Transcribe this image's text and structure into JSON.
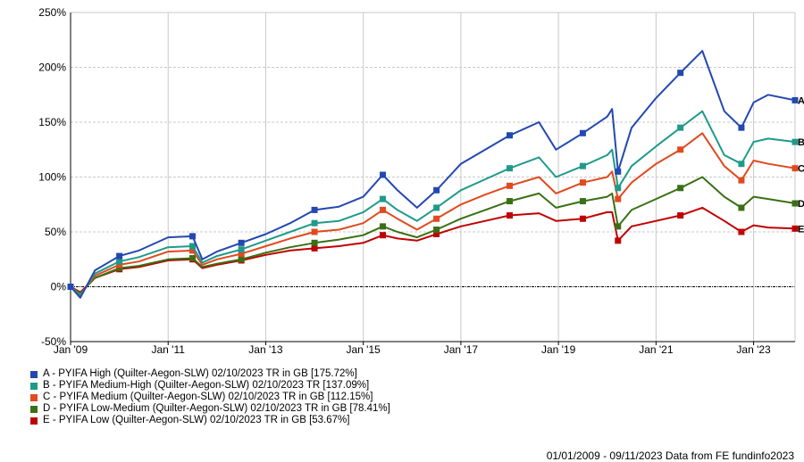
{
  "chart_data": {
    "type": "line",
    "title": "",
    "xlabel": "",
    "ylabel": "",
    "ylim": [
      -50,
      250
    ],
    "yticks": [
      "250%",
      "200%",
      "150%",
      "100%",
      "50%",
      "0%",
      "-50%"
    ],
    "ytick_values": [
      250,
      200,
      150,
      100,
      50,
      0,
      -50
    ],
    "xticks": [
      "Jan '09",
      "Jan '11",
      "Jan '13",
      "Jan '15",
      "Jan '17",
      "Jan '19",
      "Jan '21",
      "Jan '23"
    ],
    "xtick_values": [
      2009,
      2011,
      2013,
      2015,
      2017,
      2019,
      2021,
      2023
    ],
    "xlim": [
      2009.0,
      2023.85
    ],
    "grid": true,
    "legend_position": "bottom-left",
    "x": [
      2009.0,
      2009.2,
      2009.5,
      2010.0,
      2010.4,
      2011.0,
      2011.5,
      2011.7,
      2012.0,
      2012.5,
      2013.0,
      2013.5,
      2014.0,
      2014.5,
      2015.0,
      2015.4,
      2015.7,
      2016.1,
      2016.5,
      2017.0,
      2017.5,
      2018.0,
      2018.6,
      2018.95,
      2019.5,
      2020.0,
      2020.1,
      2020.22,
      2020.5,
      2021.0,
      2021.5,
      2021.95,
      2022.4,
      2022.75,
      2023.0,
      2023.3,
      2023.85
    ],
    "series": [
      {
        "name": "A - PYIFA High (Quilter-Aegon-SLW) 02/10/2023 TR in GB [175.72%]",
        "end_label": "A",
        "color": "#2348b0",
        "values": [
          0,
          -10,
          15,
          28,
          33,
          45,
          46,
          25,
          32,
          40,
          48,
          58,
          70,
          73,
          82,
          102,
          88,
          72,
          88,
          112,
          125,
          138,
          150,
          125,
          140,
          155,
          162,
          105,
          145,
          172,
          195,
          215,
          160,
          145,
          168,
          175,
          170
        ]
      },
      {
        "name": "B - PYIFA Medium-High (Quilter-Aegon-SLW) 02/10/2023 TR [137.09%]",
        "end_label": "B",
        "color": "#1f9a8a",
        "values": [
          0,
          -8,
          12,
          23,
          27,
          36,
          37,
          22,
          28,
          34,
          42,
          50,
          58,
          60,
          68,
          80,
          70,
          60,
          72,
          88,
          98,
          108,
          118,
          100,
          110,
          120,
          125,
          90,
          110,
          128,
          145,
          160,
          120,
          112,
          132,
          135,
          132
        ]
      },
      {
        "name": "C - PYIFA Medium (Quilter-Aegon-SLW) 02/10/2023 TR in GB [112.15%]",
        "end_label": "C",
        "color": "#e04a1e",
        "values": [
          0,
          -7,
          10,
          20,
          23,
          32,
          33,
          20,
          25,
          30,
          37,
          44,
          50,
          52,
          58,
          70,
          62,
          52,
          62,
          75,
          84,
          92,
          100,
          85,
          95,
          100,
          105,
          80,
          95,
          112,
          125,
          140,
          110,
          97,
          115,
          112,
          108
        ]
      },
      {
        "name": "D - PYIFA Low-Medium (Quilter-Aegon-SLW) 02/10/2023 TR in GB [78.41%]",
        "end_label": "D",
        "color": "#3a7015",
        "values": [
          0,
          -6,
          8,
          17,
          19,
          25,
          26,
          18,
          21,
          25,
          31,
          36,
          40,
          43,
          47,
          55,
          50,
          45,
          52,
          62,
          70,
          78,
          85,
          72,
          78,
          82,
          85,
          55,
          70,
          80,
          90,
          100,
          82,
          72,
          82,
          80,
          76
        ]
      },
      {
        "name": "E - PYIFA Low (Quilter-Aegon-SLW) 02/10/2023 TR in GB [53.67%]",
        "end_label": "E",
        "color": "#c00000",
        "values": [
          0,
          -5,
          8,
          16,
          18,
          24,
          25,
          17,
          20,
          24,
          29,
          33,
          35,
          37,
          40,
          47,
          44,
          42,
          48,
          55,
          60,
          65,
          67,
          60,
          62,
          68,
          68,
          42,
          55,
          60,
          65,
          72,
          60,
          50,
          56,
          54,
          53
        ]
      }
    ]
  },
  "footer": "01/01/2009 - 09/11/2023 Data from FE fundinfo2023"
}
